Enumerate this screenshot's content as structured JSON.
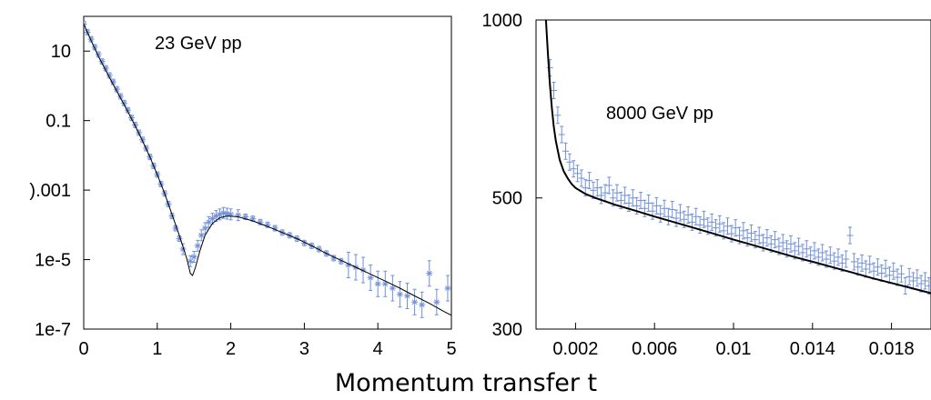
{
  "xlabel": "Momentum transfer t",
  "colors": {
    "data": "#6f8fdc",
    "fit": "#000000",
    "axis": "#000000"
  },
  "chart_data": [
    {
      "type": "scatter",
      "annotation": "23 GeV pp",
      "xlabel": "",
      "ylabel": "",
      "xlim": [
        0,
        5
      ],
      "ylim": [
        1e-07,
        100
      ],
      "yscale": "log",
      "grid": false,
      "x_ticks": [
        0,
        1,
        2,
        3,
        4,
        5
      ],
      "x_tick_labels": [
        "0",
        "1",
        "2",
        "3",
        "4",
        "5"
      ],
      "y_ticks": [
        1e-07,
        1e-05,
        0.001,
        0.1,
        10
      ],
      "y_tick_labels": [
        "1e-7",
        "1e-5",
        ").001",
        "0.1",
        "10"
      ],
      "series": [
        {
          "kind": "data",
          "points": [
            [
              0.0,
              60
            ],
            [
              0.05,
              35
            ],
            [
              0.1,
              22
            ],
            [
              0.15,
              13
            ],
            [
              0.2,
              8
            ],
            [
              0.25,
              5
            ],
            [
              0.3,
              3.2
            ],
            [
              0.35,
              2.0
            ],
            [
              0.4,
              1.3
            ],
            [
              0.45,
              0.8
            ],
            [
              0.5,
              0.5
            ],
            [
              0.55,
              0.32
            ],
            [
              0.6,
              0.2
            ],
            [
              0.65,
              0.12
            ],
            [
              0.7,
              0.075
            ],
            [
              0.75,
              0.045
            ],
            [
              0.8,
              0.028
            ],
            [
              0.85,
              0.016
            ],
            [
              0.9,
              0.009
            ],
            [
              0.95,
              0.005
            ],
            [
              1.0,
              0.0028
            ],
            [
              1.05,
              0.0015
            ],
            [
              1.1,
              0.0008
            ],
            [
              1.15,
              0.0004
            ],
            [
              1.2,
              0.00018
            ],
            [
              1.25,
              8e-05
            ],
            [
              1.3,
              4e-05
            ],
            [
              1.35,
              2e-05
            ],
            [
              1.45,
              9e-06
            ],
            [
              1.5,
              1.2e-05
            ],
            [
              1.55,
              2.5e-05
            ],
            [
              1.6,
              5e-05
            ],
            [
              1.65,
              8e-05
            ],
            [
              1.7,
              0.00012
            ],
            [
              1.75,
              0.00015
            ],
            [
              1.8,
              0.00018
            ],
            [
              1.85,
              0.0002
            ],
            [
              1.9,
              0.00022
            ],
            [
              1.95,
              0.00021
            ],
            [
              2.0,
              0.0002
            ],
            [
              2.1,
              0.00019
            ],
            [
              2.2,
              0.00017
            ],
            [
              2.3,
              0.00015
            ],
            [
              2.4,
              0.00012
            ],
            [
              2.5,
              0.0001
            ],
            [
              2.6,
              8e-05
            ],
            [
              2.7,
              6e-05
            ],
            [
              2.8,
              5e-05
            ],
            [
              2.9,
              4e-05
            ],
            [
              3.0,
              3e-05
            ],
            [
              3.1,
              2.5e-05
            ],
            [
              3.2,
              2e-05
            ],
            [
              3.3,
              1.5e-05
            ],
            [
              3.4,
              1.1e-05
            ],
            [
              3.5,
              9e-06
            ],
            [
              3.6,
              7e-06
            ],
            [
              3.7,
              6e-06
            ],
            [
              3.8,
              5e-06
            ],
            [
              3.9,
              3e-06
            ],
            [
              4.0,
              2e-06
            ],
            [
              4.1,
              2e-06
            ],
            [
              4.2,
              1.5e-06
            ],
            [
              4.3,
              1e-06
            ],
            [
              4.4,
              9e-07
            ],
            [
              4.5,
              6e-07
            ],
            [
              4.6,
              5e-07
            ],
            [
              4.7,
              4e-06
            ],
            [
              4.8,
              6e-07
            ],
            [
              4.95,
              1.5e-06
            ]
          ]
        },
        {
          "kind": "fit",
          "points": [
            [
              0.0,
              60
            ],
            [
              0.1,
              20
            ],
            [
              0.2,
              7
            ],
            [
              0.3,
              2.8
            ],
            [
              0.4,
              1.1
            ],
            [
              0.5,
              0.45
            ],
            [
              0.6,
              0.18
            ],
            [
              0.7,
              0.07
            ],
            [
              0.8,
              0.026
            ],
            [
              0.9,
              0.009
            ],
            [
              1.0,
              0.0028
            ],
            [
              1.1,
              0.0008
            ],
            [
              1.2,
              0.0002
            ],
            [
              1.3,
              5e-05
            ],
            [
              1.4,
              1.1e-05
            ],
            [
              1.45,
              4e-06
            ],
            [
              1.48,
              3.5e-06
            ],
            [
              1.52,
              6e-06
            ],
            [
              1.58,
              1.8e-05
            ],
            [
              1.65,
              5e-05
            ],
            [
              1.75,
              0.00011
            ],
            [
              1.85,
              0.00016
            ],
            [
              1.95,
              0.00018
            ],
            [
              2.1,
              0.00017
            ],
            [
              2.3,
              0.00013
            ],
            [
              2.5,
              9e-05
            ],
            [
              2.7,
              6e-05
            ],
            [
              2.9,
              4e-05
            ],
            [
              3.1,
              2.5e-05
            ],
            [
              3.3,
              1.5e-05
            ],
            [
              3.5,
              9.5e-06
            ],
            [
              3.7,
              6e-06
            ],
            [
              3.9,
              3.8e-06
            ],
            [
              4.1,
              2.4e-06
            ],
            [
              4.3,
              1.5e-06
            ],
            [
              4.5,
              9e-07
            ],
            [
              4.7,
              5.5e-07
            ],
            [
              4.9,
              3.2e-07
            ],
            [
              5.0,
              2.5e-07
            ]
          ]
        }
      ]
    },
    {
      "type": "scatter",
      "annotation": "8000 GeV pp",
      "xlabel": "",
      "ylabel": "",
      "xlim": [
        0,
        0.02
      ],
      "ylim": [
        300,
        1000
      ],
      "yscale": "log",
      "grid": false,
      "x_ticks": [
        0.002,
        0.006,
        0.01,
        0.014,
        0.018
      ],
      "x_tick_labels": [
        "0.002",
        "0.006",
        "0.01",
        "0.014",
        "0.018"
      ],
      "y_ticks": [
        300,
        500,
        1000
      ],
      "y_tick_labels": [
        "300",
        "500",
        "1000"
      ],
      "series": [
        {
          "kind": "data",
          "points": [
            [
              0.0007,
              830
            ],
            [
              0.0009,
              760
            ],
            [
              0.0011,
              690
            ],
            [
              0.0013,
              640
            ],
            [
              0.0015,
              600
            ],
            [
              0.0017,
              575
            ],
            [
              0.0019,
              560
            ],
            [
              0.0021,
              550
            ],
            [
              0.0023,
              540
            ],
            [
              0.0025,
              520
            ],
            [
              0.0027,
              535
            ],
            [
              0.0029,
              515
            ],
            [
              0.0031,
              520
            ],
            [
              0.0033,
              505
            ],
            [
              0.0035,
              510
            ],
            [
              0.0037,
              525
            ],
            [
              0.0039,
              500
            ],
            [
              0.0041,
              510
            ],
            [
              0.0043,
              495
            ],
            [
              0.0045,
              505
            ],
            [
              0.0047,
              490
            ],
            [
              0.0049,
              500
            ],
            [
              0.0051,
              485
            ],
            [
              0.0053,
              495
            ],
            [
              0.0055,
              480
            ],
            [
              0.0057,
              490
            ],
            [
              0.0059,
              475
            ],
            [
              0.0061,
              485
            ],
            [
              0.0063,
              470
            ],
            [
              0.0065,
              480
            ],
            [
              0.0067,
              465
            ],
            [
              0.0069,
              478
            ],
            [
              0.0071,
              462
            ],
            [
              0.0073,
              472
            ],
            [
              0.0075,
              460
            ],
            [
              0.0077,
              468
            ],
            [
              0.0079,
              455
            ],
            [
              0.0081,
              465
            ],
            [
              0.0083,
              450
            ],
            [
              0.0085,
              460
            ],
            [
              0.0087,
              448
            ],
            [
              0.0089,
              455
            ],
            [
              0.0091,
              445
            ],
            [
              0.0093,
              452
            ],
            [
              0.0095,
              440
            ],
            [
              0.0097,
              448
            ],
            [
              0.0099,
              435
            ],
            [
              0.0101,
              445
            ],
            [
              0.0103,
              432
            ],
            [
              0.0105,
              440
            ],
            [
              0.0107,
              428
            ],
            [
              0.0109,
              436
            ],
            [
              0.0111,
              425
            ],
            [
              0.0113,
              432
            ],
            [
              0.0115,
              420
            ],
            [
              0.0117,
              428
            ],
            [
              0.0119,
              418
            ],
            [
              0.0121,
              425
            ],
            [
              0.0123,
              414
            ],
            [
              0.0125,
              420
            ],
            [
              0.0127,
              410
            ],
            [
              0.0129,
              418
            ],
            [
              0.0131,
              407
            ],
            [
              0.0133,
              414
            ],
            [
              0.0135,
              404
            ],
            [
              0.0137,
              410
            ],
            [
              0.0139,
              400
            ],
            [
              0.0141,
              407
            ],
            [
              0.0143,
              397
            ],
            [
              0.0145,
              404
            ],
            [
              0.0147,
              394
            ],
            [
              0.0149,
              400
            ],
            [
              0.0151,
              391
            ],
            [
              0.0153,
              397
            ],
            [
              0.0155,
              388
            ],
            [
              0.0157,
              394
            ],
            [
              0.0159,
              432
            ],
            [
              0.0161,
              390
            ],
            [
              0.0163,
              382
            ],
            [
              0.0165,
              388
            ],
            [
              0.0167,
              379
            ],
            [
              0.0169,
              386
            ],
            [
              0.0171,
              376
            ],
            [
              0.0173,
              382
            ],
            [
              0.0175,
              373
            ],
            [
              0.0177,
              380
            ],
            [
              0.0179,
              370
            ],
            [
              0.0181,
              376
            ],
            [
              0.0183,
              367
            ],
            [
              0.0185,
              372
            ],
            [
              0.0187,
              355
            ],
            [
              0.0189,
              368
            ],
            [
              0.0191,
              362
            ],
            [
              0.0193,
              366
            ],
            [
              0.0195,
              358
            ],
            [
              0.0197,
              362
            ],
            [
              0.0199,
              355
            ]
          ]
        },
        {
          "kind": "fit",
          "points": [
            [
              0.0005,
              1000
            ],
            [
              0.0006,
              880
            ],
            [
              0.0007,
              780
            ],
            [
              0.0008,
              710
            ],
            [
              0.0009,
              660
            ],
            [
              0.001,
              625
            ],
            [
              0.0012,
              580
            ],
            [
              0.0014,
              555
            ],
            [
              0.0016,
              540
            ],
            [
              0.0018,
              528
            ],
            [
              0.002,
              520
            ],
            [
              0.0025,
              508
            ],
            [
              0.003,
              500
            ],
            [
              0.004,
              487
            ],
            [
              0.005,
              476
            ],
            [
              0.006,
              465
            ],
            [
              0.007,
              455
            ],
            [
              0.008,
              445
            ],
            [
              0.009,
              435
            ],
            [
              0.01,
              425
            ],
            [
              0.011,
              416
            ],
            [
              0.012,
              407
            ],
            [
              0.013,
              398
            ],
            [
              0.014,
              390
            ],
            [
              0.015,
              382
            ],
            [
              0.016,
              374
            ],
            [
              0.017,
              366
            ],
            [
              0.018,
              359
            ],
            [
              0.019,
              352
            ],
            [
              0.02,
              345
            ]
          ]
        }
      ]
    }
  ]
}
